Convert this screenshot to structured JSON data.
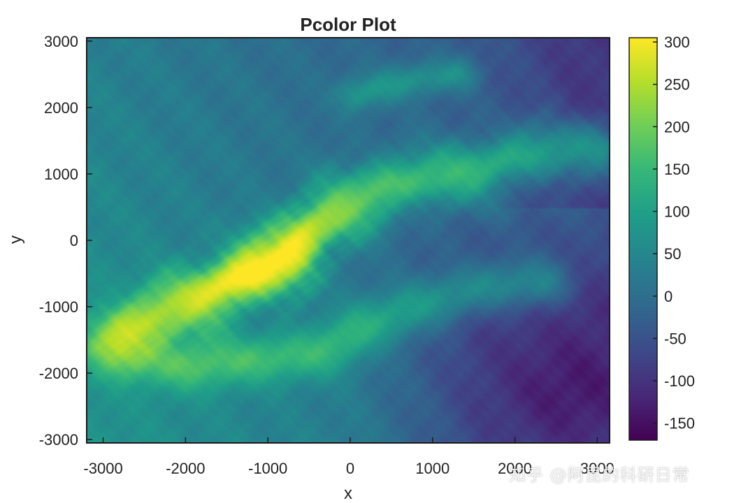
{
  "chart_data": {
    "type": "heatmap",
    "title": "Pcolor Plot",
    "xlabel": "x",
    "ylabel": "y",
    "xlim": [
      -3200,
      3150
    ],
    "ylim": [
      -3050,
      3050
    ],
    "x_ticks": [
      -3000,
      -2000,
      -1000,
      0,
      1000,
      2000,
      3000
    ],
    "x_tick_labels": [
      "-3000",
      "-2000",
      "-1000",
      "0",
      "1000",
      "2000",
      "3000"
    ],
    "y_ticks": [
      -3000,
      -2000,
      -1000,
      0,
      1000,
      2000,
      3000
    ],
    "y_tick_labels": [
      "-3000",
      "-2000",
      "-1000",
      "0",
      "1000",
      "2000",
      "3000"
    ],
    "colormap": "viridis",
    "clim": [
      -170,
      305
    ],
    "colorbar_ticks": [
      -150,
      -100,
      -50,
      0,
      50,
      100,
      150,
      200,
      250,
      300
    ],
    "colorbar_tick_labels": [
      "-150",
      "-100",
      "-50",
      "0",
      "50",
      "100",
      "150",
      "200",
      "250",
      "300"
    ],
    "grid": false,
    "features": {
      "main_ridge": {
        "points": [
          [
            -2700,
            -1300
          ],
          [
            -1900,
            -900
          ],
          [
            -1300,
            -550
          ],
          [
            -800,
            -250
          ],
          [
            -500,
            150
          ],
          [
            0,
            550
          ],
          [
            500,
            850
          ],
          [
            1000,
            950
          ],
          [
            1500,
            1050
          ],
          [
            2000,
            1250
          ],
          [
            2500,
            1350
          ],
          [
            3000,
            1400
          ]
        ],
        "peak_value": 300
      },
      "southern_ridge": {
        "points": [
          [
            -2800,
            -1700
          ],
          [
            -2000,
            -1900
          ],
          [
            -1200,
            -1800
          ],
          [
            -400,
            -1700
          ],
          [
            200,
            -1300
          ],
          [
            800,
            -1000
          ],
          [
            1700,
            -700
          ],
          [
            2300,
            -650
          ]
        ],
        "peak_value": 160
      },
      "northern_ridge": {
        "points": [
          [
            100,
            2200
          ],
          [
            700,
            2400
          ],
          [
            1300,
            2500
          ]
        ],
        "peak_value": 110
      },
      "southeast_basin": {
        "center": [
          2600,
          -2300
        ],
        "min_value": -165
      }
    }
  },
  "watermark_text": "知乎 @阿昆的科研日常"
}
